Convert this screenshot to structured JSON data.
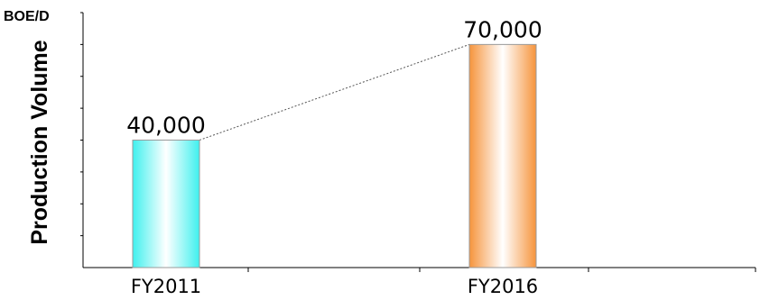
{
  "chart_data": {
    "type": "bar",
    "title": "",
    "unit_label": "BOE/D",
    "ylabel": "Production Volume",
    "xlabel": "",
    "categories": [
      "FY2011",
      "FY2016"
    ],
    "values": [
      40000,
      70000
    ],
    "value_labels": [
      "40,000",
      "70,000"
    ],
    "ylim": [
      0,
      80000
    ],
    "grid": false,
    "legend": "none",
    "connector": "dotted line between bar tops",
    "colors": {
      "bar_1": "#3ff0ee",
      "bar_2": "#f6943c",
      "highlight": "#ffffff",
      "axis": "#000000"
    }
  }
}
